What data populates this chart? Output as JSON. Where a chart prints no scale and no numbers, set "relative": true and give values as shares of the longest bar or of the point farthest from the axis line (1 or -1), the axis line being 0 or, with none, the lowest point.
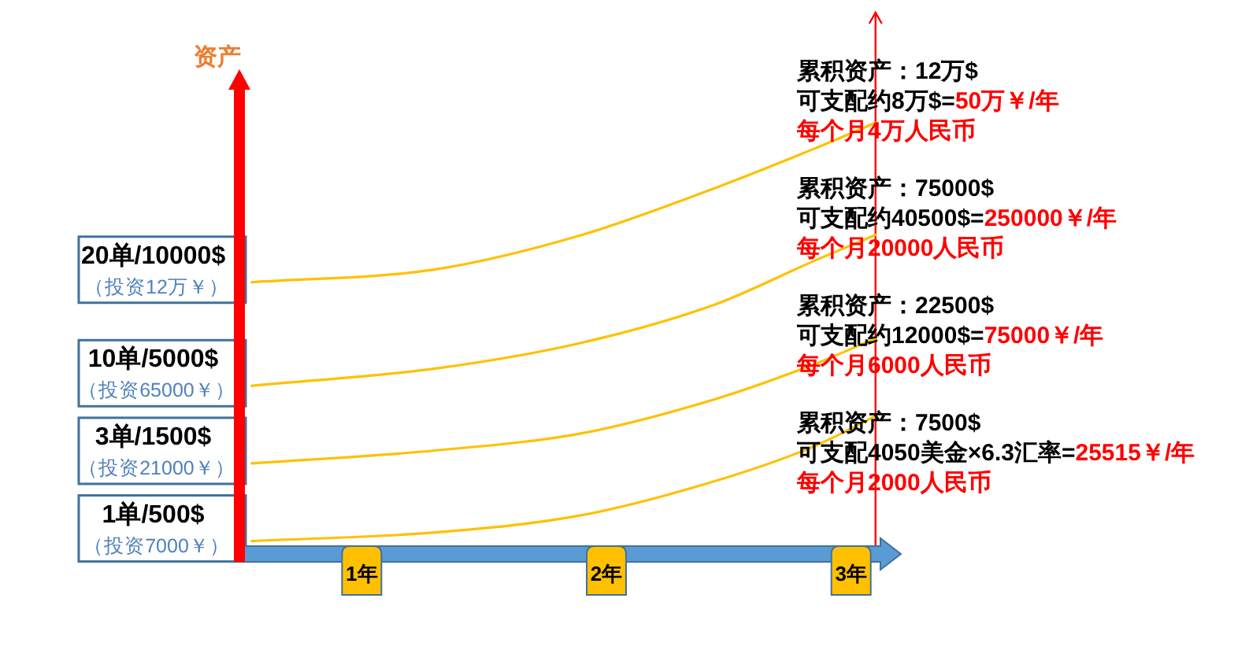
{
  "chart_data": {
    "type": "line",
    "relative": true,
    "ylabel": "资产",
    "x": [
      0.55,
      1.3,
      1.9,
      2.45,
      2.85,
      3.1
    ],
    "xlim": [
      0.5,
      3.12
    ],
    "xticks": [
      {
        "value": 1,
        "label": "1年"
      },
      {
        "value": 2,
        "label": "2年"
      },
      {
        "value": 3,
        "label": "3年"
      }
    ],
    "series": [
      {
        "name": "20单/10000$ $_{（投资12万￥）}$",
        "color": "#ffc000",
        "values": [
          0.63,
          0.66,
          0.74,
          0.85,
          0.94,
          1
        ]
      },
      {
        "name": "10单/5000$ $_{（投资65000￥）}$",
        "color": "#ffc000",
        "values": [
          0.39,
          0.43,
          0.49,
          0.58,
          0.68,
          0.74
        ]
      },
      {
        "name": "3单/1500$ $_{（投资21000￥）}$",
        "color": "#ffc000",
        "values": [
          0.21,
          0.24,
          0.28,
          0.36,
          0.44,
          0.5
        ]
      },
      {
        "name": "1单/500$ $_{（投资7000￥）}$",
        "color": "#ffc000",
        "values": [
          0.03,
          0.05,
          0.09,
          0.17,
          0.25,
          0.32
        ]
      }
    ],
    "ref_lines": [
      {
        "axis": "x",
        "value": 3.1,
        "color": "#ff0000"
      }
    ],
    "annotations": [
      "累积资产：12万$",
      "可支配约8万$=50万￥/年",
      "每个月4万人民币",
      "累积资产：75000$",
      "可支配约40500$=250000￥/年",
      "每个月20000人民币",
      "累积资产：22500$",
      "可支配约12000$=75000￥/年",
      "每个月6000人民币",
      "累积资产：7500$",
      "可支配4050美金×6.3汇率=25515￥/年",
      "每个月2000人民币"
    ]
  }
}
